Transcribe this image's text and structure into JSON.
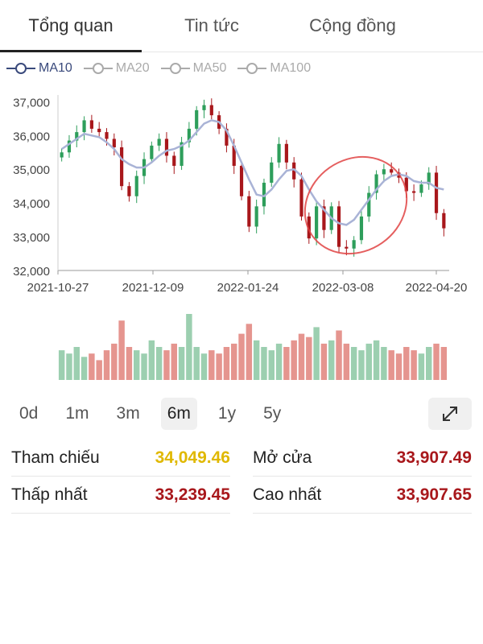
{
  "tabs": [
    {
      "label": "Tổng quan",
      "active": true
    },
    {
      "label": "Tin tức",
      "active": false
    },
    {
      "label": "Cộng đồng",
      "active": false
    }
  ],
  "legend": [
    {
      "label": "MA10",
      "active": true,
      "color": "#3a4a7c"
    },
    {
      "label": "MA20",
      "active": false,
      "color": "#aaaaaa"
    },
    {
      "label": "MA50",
      "active": false,
      "color": "#aaaaaa"
    },
    {
      "label": "MA100",
      "active": false,
      "color": "#aaaaaa"
    }
  ],
  "chart_data": {
    "type": "candlestick",
    "y_ticks": [
      "37,000",
      "36,000",
      "35,000",
      "34,000",
      "33,000",
      "32,000"
    ],
    "x_ticks": [
      "2021-10-27",
      "2021-12-09",
      "2022-01-24",
      "2022-03-08",
      "2022-04-20"
    ],
    "ylim": [
      32000,
      37200
    ],
    "closes": [
      35500,
      35850,
      36100,
      36450,
      36200,
      36100,
      35900,
      35650,
      34500,
      34200,
      34800,
      35300,
      35700,
      35900,
      35400,
      35100,
      35800,
      36200,
      36750,
      36900,
      36600,
      36200,
      35700,
      35100,
      34200,
      33300,
      33900,
      34600,
      35200,
      35750,
      35200,
      34700,
      33600,
      32950,
      33900,
      33200,
      33900,
      32700,
      32650,
      32900,
      33600,
      34300,
      34850,
      35000,
      34900,
      34750,
      34350,
      34300,
      34550,
      34900,
      33700,
      33250
    ],
    "ma10": [
      35600,
      35750,
      35900,
      36050,
      36000,
      35950,
      35800,
      35600,
      35300,
      35150,
      35050,
      35050,
      35200,
      35400,
      35550,
      35600,
      35700,
      35850,
      36100,
      36350,
      36450,
      36400,
      36150,
      35700,
      35200,
      34700,
      34250,
      34200,
      34400,
      34700,
      34950,
      35000,
      34800,
      34400,
      34050,
      33800,
      33550,
      33400,
      33350,
      33500,
      33800,
      34100,
      34400,
      34650,
      34800,
      34850,
      34800,
      34650,
      34600,
      34600,
      34450,
      34400
    ],
    "volume_ratios": [
      0.45,
      0.4,
      0.5,
      0.35,
      0.4,
      0.3,
      0.45,
      0.55,
      0.9,
      0.5,
      0.45,
      0.4,
      0.6,
      0.5,
      0.45,
      0.55,
      0.5,
      1.0,
      0.5,
      0.4,
      0.45,
      0.4,
      0.5,
      0.55,
      0.7,
      0.85,
      0.6,
      0.5,
      0.45,
      0.55,
      0.5,
      0.6,
      0.7,
      0.65,
      0.8,
      0.55,
      0.6,
      0.75,
      0.55,
      0.5,
      0.45,
      0.55,
      0.6,
      0.5,
      0.45,
      0.4,
      0.5,
      0.45,
      0.4,
      0.5,
      0.55,
      0.5
    ],
    "up_color": "#2e9e5b",
    "down_color": "#a8171b",
    "vol_up_color": "#9ccfb0",
    "vol_down_color": "#e5958f",
    "ma_color": "#a9b3d6",
    "annotation_color": "#e04343"
  },
  "periods": [
    {
      "label": "0d",
      "active": false
    },
    {
      "label": "1m",
      "active": false
    },
    {
      "label": "3m",
      "active": false
    },
    {
      "label": "6m",
      "active": true
    },
    {
      "label": "1y",
      "active": false
    },
    {
      "label": "5y",
      "active": false
    }
  ],
  "expand_icon": "expand-icon",
  "stats": {
    "ref_label": "Tham chiếu",
    "ref_value": "34,049.46",
    "open_label": "Mở cửa",
    "open_value": "33,907.49",
    "low_label": "Thấp nhất",
    "low_value": "33,239.45",
    "high_label": "Cao nhất",
    "high_value": "33,907.65"
  }
}
